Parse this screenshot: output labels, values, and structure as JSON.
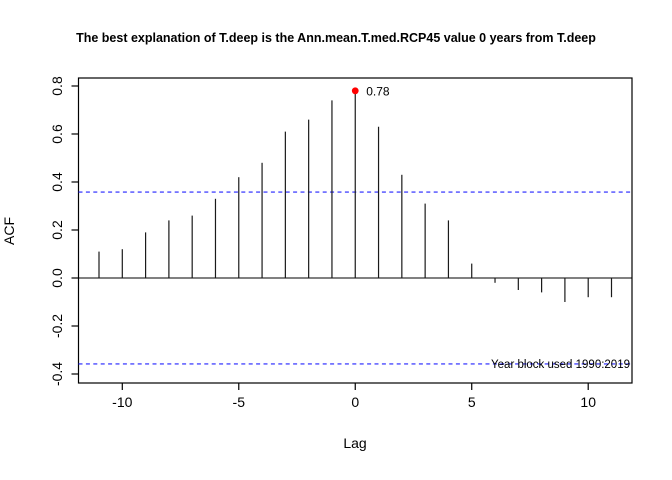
{
  "title": "The best explanation of T.deep is the Ann.mean.T.med.RCP45 value 0 years from T.deep",
  "chart_data": {
    "type": "bar",
    "subtype": "acf-spike-plot",
    "title": "The best explanation of T.deep is the Ann.mean.T.med.RCP45 value 0 years from T.deep",
    "xlabel": "Lag",
    "ylabel": "ACF",
    "x": [
      -11,
      -10,
      -9,
      -8,
      -7,
      -6,
      -5,
      -4,
      -3,
      -2,
      -1,
      0,
      1,
      2,
      3,
      4,
      5,
      6,
      7,
      8,
      9,
      10,
      11
    ],
    "values": [
      0.11,
      0.12,
      0.19,
      0.24,
      0.26,
      0.33,
      0.42,
      0.48,
      0.61,
      0.66,
      0.74,
      0.78,
      0.63,
      0.43,
      0.31,
      0.24,
      0.06,
      -0.02,
      -0.05,
      -0.06,
      -0.1,
      -0.08,
      -0.08
    ],
    "xlim": [
      -11.88,
      11.88
    ],
    "ylim": [
      -0.4375,
      0.8333
    ],
    "x_ticks": [
      -10,
      -5,
      0,
      5,
      10
    ],
    "x_tick_labels": [
      "-10",
      "-5",
      "0",
      "5",
      "10"
    ],
    "y_ticks": [
      -0.4,
      -0.2,
      0.0,
      0.2,
      0.4,
      0.6,
      0.8
    ],
    "y_tick_labels": [
      "-0.4",
      "-0.2",
      "0.0",
      "0.2",
      "0.4",
      "0.6",
      "0.8"
    ],
    "confidence_bound": 0.358,
    "confidence_line_style": "dashed",
    "confidence_line_color": "#2222ff",
    "spike_color": "#1a1a1a",
    "grid": false,
    "legend": false,
    "highlight_point": {
      "lag": 0,
      "value": 0.78,
      "label": "0.78",
      "color": "#ff0000"
    },
    "annotation": {
      "text": "Year block used 1990:2019",
      "y": -0.358,
      "color": "#000000"
    }
  }
}
